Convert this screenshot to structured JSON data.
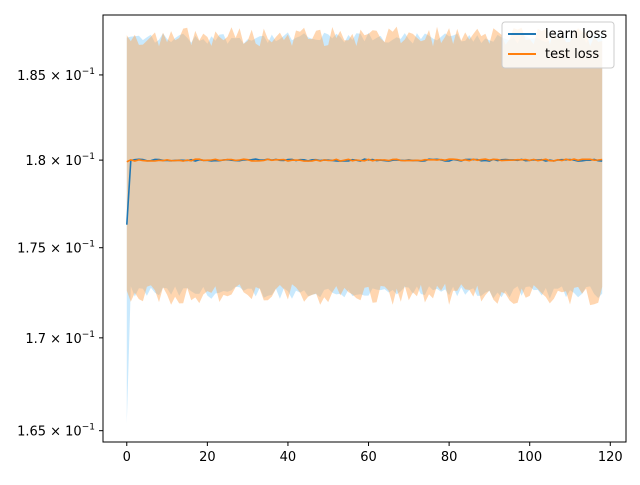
{
  "chart_data": {
    "type": "line",
    "title": "",
    "xlabel": "",
    "ylabel": "",
    "xlim": [
      -5.9,
      123.9
    ],
    "ylim": [
      0.1644,
      0.1886
    ],
    "y_scale": "log",
    "grid": false,
    "legend_position": "upper right",
    "x_ticks": [
      0,
      20,
      40,
      60,
      80,
      100,
      120
    ],
    "x_tick_labels": [
      "0",
      "20",
      "40",
      "60",
      "80",
      "100",
      "120"
    ],
    "y_ticks": [
      {
        "value": 0.185,
        "mantissa": "1.85",
        "base": "10",
        "exponent": "−1"
      },
      {
        "value": 0.18,
        "mantissa": "1.8",
        "base": "10",
        "exponent": "−1"
      },
      {
        "value": 0.175,
        "mantissa": "1.75",
        "base": "10",
        "exponent": "−1"
      },
      {
        "value": 0.17,
        "mantissa": "1.7",
        "base": "10",
        "exponent": "−1"
      },
      {
        "value": 0.165,
        "mantissa": "1.65",
        "base": "10",
        "exponent": "−1"
      }
    ],
    "x": {
      "start": 0,
      "end": 118,
      "step": 1
    },
    "series": [
      {
        "name": "learn loss",
        "color": "#1f77b4",
        "band_color": "#87cefa",
        "mean_start": 0.1763,
        "mean_rest": 0.18,
        "band_upper": 0.1872,
        "band_lower": 0.1725,
        "band_lower_start": 0.1654
      },
      {
        "name": "test loss",
        "color": "#ff7f0e",
        "band_color": "#ffa54f",
        "mean_start": 0.1799,
        "mean_rest": 0.18,
        "band_upper": 0.1873,
        "band_lower": 0.1724,
        "band_lower_start": 0.1726
      }
    ]
  }
}
